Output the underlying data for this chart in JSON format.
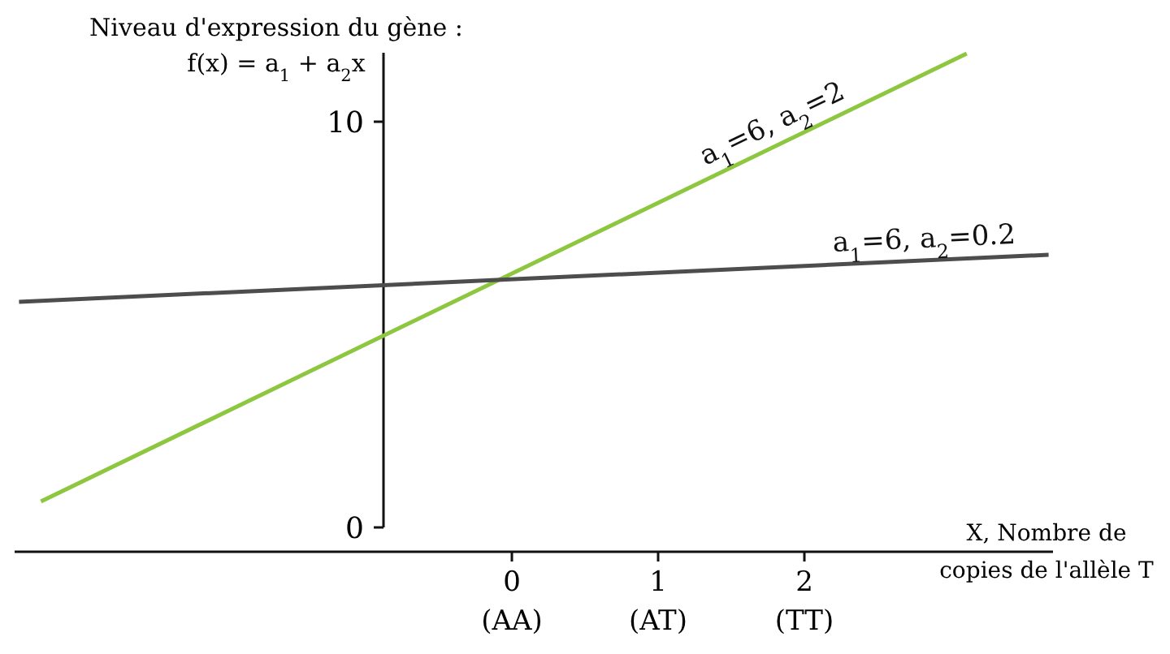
{
  "chart_data": {
    "type": "line",
    "ylabel": "Niveau d'expression du gène :\nf(x) = a$_{1}$ + a$_{2}$x",
    "xlabel": "X, Nombre de\ncopies de l'allèle T",
    "xlim": [
      -3.4,
      3.7
    ],
    "ylim": [
      0,
      11.7
    ],
    "yticks": [
      0,
      10
    ],
    "xticks": [
      {
        "value": 0,
        "label": "0\n(AA)"
      },
      {
        "value": 1,
        "label": "1\n(AT)"
      },
      {
        "value": 2,
        "label": "2\n(TT)"
      }
    ],
    "grid": false,
    "legend": false,
    "marker": "none",
    "line_style": "solid",
    "series": [
      {
        "name": "a$_{1}$=6, a$_{2}$=2",
        "color": "#8dc63f",
        "x": [
          -3.22,
          3.11
        ],
        "values": [
          0.64,
          11.68
        ]
      },
      {
        "name": "a$_{1}$=6, a$_{2}$=0.2",
        "color": "#4d4d4d",
        "x": [
          -3.37,
          3.67
        ],
        "values": [
          5.56,
          6.72
        ]
      }
    ]
  }
}
